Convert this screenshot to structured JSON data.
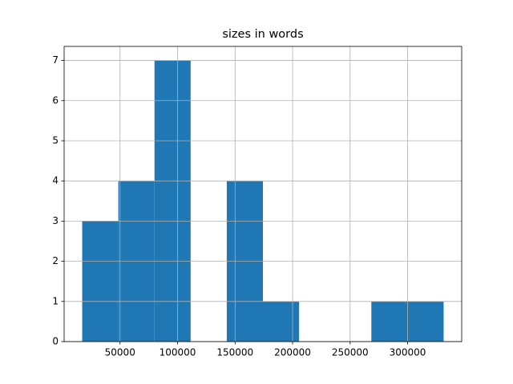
{
  "chart_data": {
    "type": "histogram",
    "title": "sizes in words",
    "bins": [
      17100,
      48520,
      79940,
      111360,
      142780,
      174200,
      205620,
      237040,
      268460,
      299880,
      331300
    ],
    "values": [
      3,
      4,
      7,
      0,
      4,
      1,
      0,
      0,
      1,
      1
    ],
    "color": "#1f77b4",
    "xlim": [
      1390,
      347010
    ],
    "xticks": [
      50000,
      100000,
      150000,
      200000,
      250000,
      300000
    ],
    "ylim": [
      0,
      7.35
    ],
    "yticks": [
      0,
      1,
      2,
      3,
      4,
      5,
      6,
      7
    ],
    "grid": true
  }
}
